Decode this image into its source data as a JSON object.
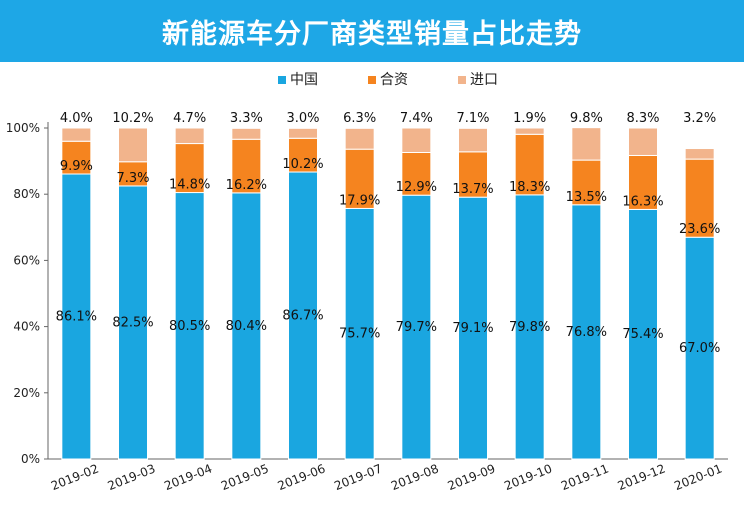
{
  "title": "新能源车分厂商类型销量占比走势",
  "colors": {
    "title_bg": "#1ea7e6",
    "china": "#1aa6e0",
    "jv": "#f5841f",
    "import": "#f2b48c"
  },
  "chart_data": {
    "type": "bar",
    "stacked": true,
    "title": "新能源车分厂商类型销量占比走势",
    "xlabel": "",
    "ylabel": "",
    "ylim": [
      0,
      100
    ],
    "y_ticks": [
      "0%",
      "20%",
      "40%",
      "60%",
      "80%",
      "100%"
    ],
    "grid": false,
    "legend_position": "top",
    "categories": [
      "2019-02",
      "2019-03",
      "2019-04",
      "2019-05",
      "2019-06",
      "2019-07",
      "2019-08",
      "2019-09",
      "2019-10",
      "2019-11",
      "2019-12",
      "2020-01"
    ],
    "series": [
      {
        "name": "中国",
        "color": "#1aa6e0",
        "values": [
          86.1,
          82.5,
          80.5,
          80.4,
          86.7,
          75.7,
          79.7,
          79.1,
          79.8,
          76.8,
          75.4,
          67.0
        ],
        "labels": [
          "86.1%",
          "82.5%",
          "80.5%",
          "80.4%",
          "86.7%",
          "75.7%",
          "79.7%",
          "79.1%",
          "79.8%",
          "76.8%",
          "75.4%",
          "67.0%"
        ]
      },
      {
        "name": "合资",
        "color": "#f5841f",
        "values": [
          9.9,
          7.3,
          14.8,
          16.2,
          10.2,
          17.9,
          12.9,
          13.7,
          18.3,
          13.5,
          16.3,
          23.6
        ],
        "labels": [
          "9.9%",
          "7.3%",
          "14.8%",
          "16.2%",
          "10.2%",
          "17.9%",
          "12.9%",
          "13.7%",
          "18.3%",
          "13.5%",
          "16.3%",
          "23.6%"
        ]
      },
      {
        "name": "进口",
        "color": "#f2b48c",
        "values": [
          4.0,
          10.2,
          4.7,
          3.3,
          3.0,
          6.3,
          7.4,
          7.1,
          1.9,
          9.8,
          8.3,
          3.2
        ],
        "labels": [
          "4.0%",
          "10.2%",
          "4.7%",
          "3.3%",
          "3.0%",
          "6.3%",
          "7.4%",
          "7.1%",
          "1.9%",
          "9.8%",
          "8.3%",
          "3.2%"
        ]
      }
    ]
  }
}
